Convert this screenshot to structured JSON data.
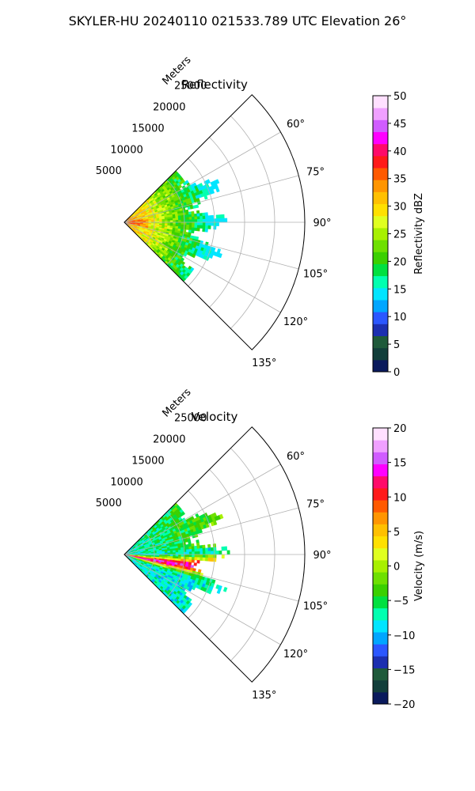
{
  "figure": {
    "title": "SKYLER-HU  20240110  021533.789 UTC Elevation 26°"
  },
  "chart_data": [
    {
      "type": "heatmap",
      "title": "Reflectivity",
      "projection": "polar sector (PPI)",
      "theta_ticks": [
        "60°",
        "75°",
        "90°",
        "105°",
        "120°",
        "135°"
      ],
      "theta_range_deg": [
        45,
        135
      ],
      "radial_label": "Meters",
      "radial_ticks": [
        "5000",
        "10000",
        "15000",
        "20000",
        "25000"
      ],
      "r_max": 30000,
      "data_extent_m": 18000,
      "grid": true,
      "colorbar": {
        "label": "Reflectivity dBZ",
        "min": 0,
        "max": 50,
        "ticks": [
          "0",
          "5",
          "10",
          "15",
          "20",
          "25",
          "30",
          "35",
          "40",
          "45",
          "50"
        ],
        "colors": [
          "#0a1a5c",
          "#123e3a",
          "#1f5a3a",
          "#1c2fb0",
          "#2b57ff",
          "#00a6ff",
          "#00e5ff",
          "#00ffb0",
          "#00e040",
          "#3ad000",
          "#6ee000",
          "#a8f000",
          "#e0ff20",
          "#ffe000",
          "#ffc000",
          "#ff9500",
          "#ff5a00",
          "#ff1a1a",
          "#ff0a6a",
          "#ff00ff",
          "#d05cff",
          "#f0a0ff",
          "#ffe0ff"
        ]
      }
    },
    {
      "type": "heatmap",
      "title": "Velocity",
      "projection": "polar sector (PPI)",
      "theta_ticks": [
        "60°",
        "75°",
        "90°",
        "105°",
        "120°",
        "135°"
      ],
      "theta_range_deg": [
        45,
        135
      ],
      "radial_label": "Meters",
      "radial_ticks": [
        "5000",
        "10000",
        "15000",
        "20000",
        "25000"
      ],
      "r_max": 30000,
      "data_extent_m": 18000,
      "grid": true,
      "colorbar": {
        "label": "Velocity (m/s)",
        "min": -20,
        "max": 20,
        "ticks": [
          "−20",
          "−15",
          "−10",
          "−5",
          "0",
          "5",
          "10",
          "15",
          "20"
        ],
        "colors": [
          "#0a1a5c",
          "#123e3a",
          "#1f5a3a",
          "#1c2fb0",
          "#2b57ff",
          "#00a6ff",
          "#00e5ff",
          "#00ffb0",
          "#00e040",
          "#3ad000",
          "#6ee000",
          "#a8f000",
          "#e0ff20",
          "#ffe000",
          "#ffc000",
          "#ff9500",
          "#ff5a00",
          "#ff1a1a",
          "#ff0a6a",
          "#ff00ff",
          "#d05cff",
          "#f0a0ff",
          "#ffe0ff"
        ]
      }
    }
  ]
}
